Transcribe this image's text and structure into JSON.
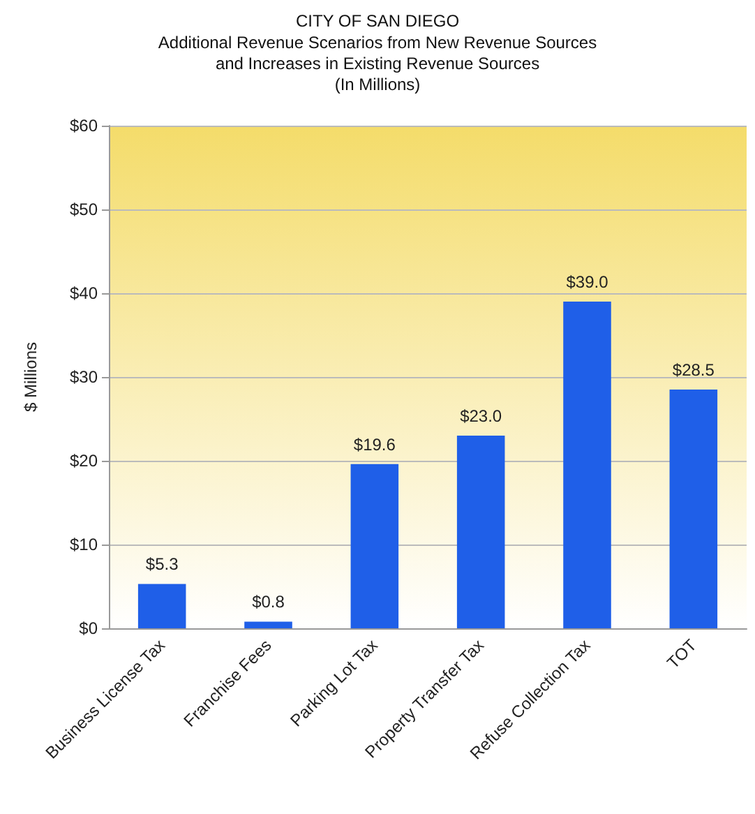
{
  "chart_data": {
    "type": "bar",
    "title": "CITY OF SAN DIEGO",
    "subtitle": "Additional Revenue Scenarios from New Revenue Sources\nand Increases in Existing Revenue Sources\n(In Millions)",
    "ylabel": "$ Millions",
    "categories": [
      "Business License Tax",
      "Franchise Fees",
      "Parking Lot Tax",
      "Property Transfer Tax",
      "Refuse Collection Tax",
      "TOT"
    ],
    "values": [
      5.3,
      0.8,
      19.6,
      23.0,
      39.0,
      28.5
    ],
    "value_labels": [
      "$5.3",
      "$0.8",
      "$19.6",
      "$23.0",
      "$39.0",
      "$28.5"
    ],
    "color": "#1f5fe8",
    "ylim": [
      0,
      60
    ],
    "yticks": [
      {
        "value": 0,
        "label": "$0"
      },
      {
        "value": 10,
        "label": "$10"
      },
      {
        "value": 20,
        "label": "$20"
      },
      {
        "value": 30,
        "label": "$30"
      },
      {
        "value": 40,
        "label": "$40"
      },
      {
        "value": 50,
        "label": "$50"
      },
      {
        "value": 60,
        "label": "$60"
      }
    ],
    "grid": "y"
  }
}
